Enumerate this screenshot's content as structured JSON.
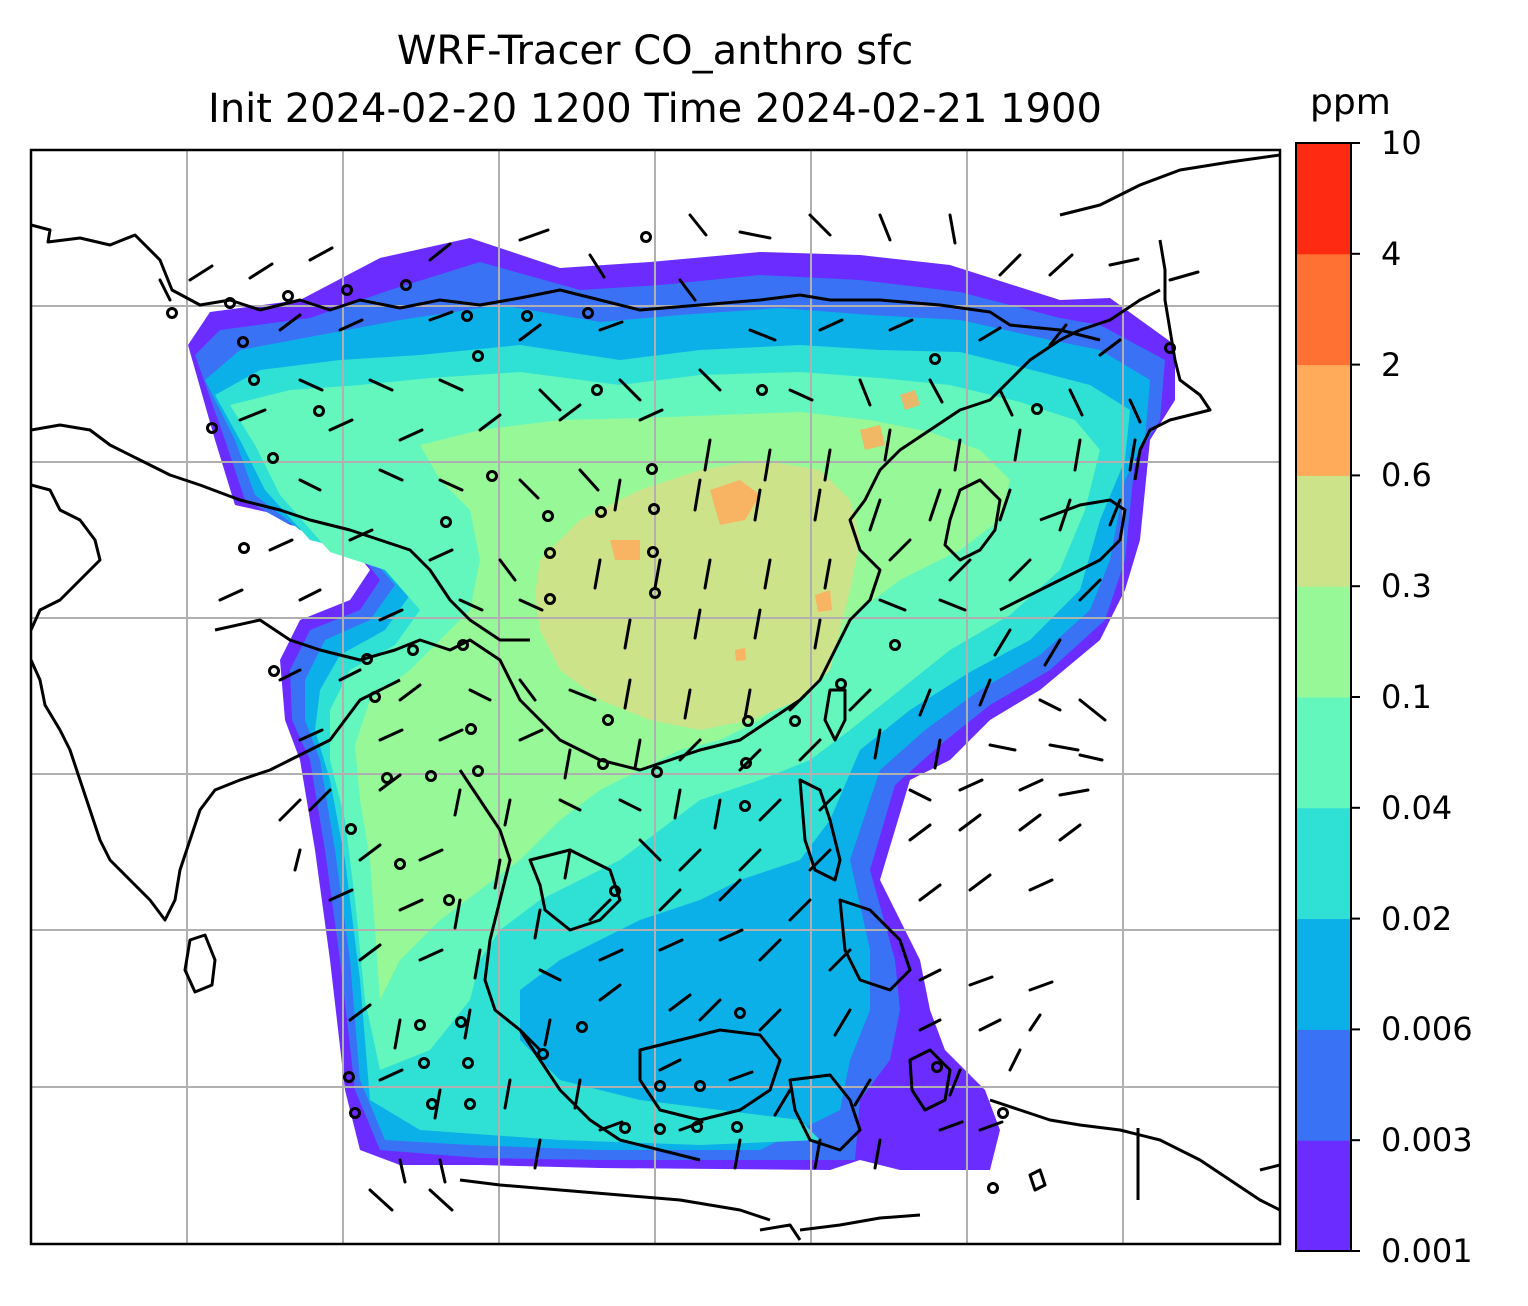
{
  "title": {
    "line1": "WRF-Tracer CO_anthro sfc",
    "line2": "Init 2024-02-20 1200 Time 2024-02-21 1900"
  },
  "colorbar": {
    "unit": "ppm",
    "ticks": [
      "0.001",
      "0.003",
      "0.006",
      "0.02",
      "0.04",
      "0.1",
      "0.3",
      "0.6",
      "2",
      "4",
      "10"
    ],
    "colors": [
      "#6a2cff",
      "#3a72f5",
      "#0cb0e8",
      "#2fe0d4",
      "#63f6bd",
      "#97f897",
      "#cde38a",
      "#ffab5a",
      "#ff7033",
      "#ff2a12"
    ]
  },
  "map": {
    "gridlines": true,
    "coastline_color": "#000000",
    "grid_color": "#b0b0b0"
  }
}
